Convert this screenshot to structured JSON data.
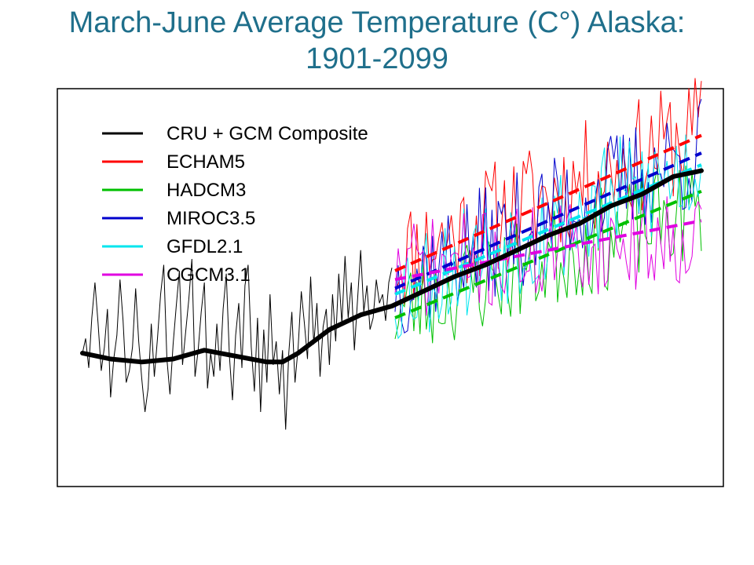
{
  "title": {
    "line1": "March-June Average Temperature (C°) Alaska:",
    "line2": "1901-2099"
  },
  "chart_data": {
    "type": "line",
    "title": "March-June Average Temperature (C°) Alaska: 1901-2099",
    "xlabel": "",
    "ylabel": "",
    "xlim": [
      1901,
      2099
    ],
    "ylim": [
      -6,
      6
    ],
    "grid": false,
    "legend_position": "top-left",
    "smoothed_composite": {
      "name": "CRU + GCM Composite",
      "color": "#000000",
      "x": [
        1901,
        1910,
        1920,
        1930,
        1940,
        1950,
        1960,
        1965,
        1970,
        1980,
        1990,
        2000,
        2010,
        2020,
        2030,
        2040,
        2050,
        2060,
        2070,
        2080,
        2090,
        2099
      ],
      "y": [
        -2.0,
        -2.2,
        -2.3,
        -2.2,
        -1.9,
        -2.1,
        -2.3,
        -2.3,
        -2.0,
        -1.2,
        -0.7,
        -0.4,
        0.1,
        0.6,
        1.0,
        1.5,
        2.0,
        2.4,
        3.0,
        3.4,
        4.0,
        4.2
      ]
    },
    "observed_annual": {
      "name": "CRU + GCM Composite",
      "color": "#000000",
      "x_start": 1901,
      "x_end": 2000,
      "y": [
        -2.0,
        -1.5,
        -2.5,
        -0.8,
        0.4,
        -1.0,
        -2.6,
        -1.8,
        -0.5,
        -3.5,
        -2.2,
        -1.4,
        0.5,
        -0.9,
        -3.0,
        -2.6,
        -1.8,
        0.2,
        -1.6,
        -2.9,
        -4.0,
        -3.2,
        -1.0,
        -2.8,
        -1.5,
        0.0,
        1.0,
        -2.2,
        -3.4,
        -1.7,
        -0.4,
        0.8,
        -2.4,
        -1.3,
        -0.2,
        1.2,
        -2.8,
        -1.9,
        -0.6,
        0.4,
        -3.2,
        -2.0,
        -2.8,
        -1.0,
        -2.6,
        -0.5,
        0.7,
        -2.1,
        -3.6,
        -1.4,
        -0.3,
        -2.5,
        0.3,
        1.0,
        -1.8,
        -3.3,
        -0.8,
        -4.0,
        -1.2,
        -3.0,
        0.0,
        -2.4,
        -1.6,
        -3.4,
        -1.9,
        -4.6,
        -2.0,
        -0.6,
        -3.0,
        -1.8,
        0.1,
        -1.0,
        -2.2,
        0.6,
        -1.7,
        -0.3,
        -2.8,
        -1.1,
        -0.5,
        -2.4,
        0.0,
        -1.6,
        0.7,
        -1.0,
        1.3,
        -0.8,
        0.4,
        -1.9,
        -0.2,
        1.5,
        -0.6,
        0.3,
        -1.2,
        -0.8,
        0.5,
        -0.3,
        0.0,
        -0.9,
        0.4,
        0.9
      ]
    },
    "series": [
      {
        "name": "ECHAM5",
        "color": "#ff0000",
        "lw": 1,
        "seed": 11,
        "trend": [
          1.2,
          5.6
        ],
        "spread": 2.0,
        "x_start": 2001,
        "x_end": 2099
      },
      {
        "name": "HADCM3",
        "color": "#00c000",
        "lw": 1,
        "seed": 23,
        "trend": [
          -0.6,
          3.0
        ],
        "spread": 1.8,
        "x_start": 2001,
        "x_end": 2099
      },
      {
        "name": "MIROC3.5",
        "color": "#0000cc",
        "lw": 1,
        "seed": 37,
        "trend": [
          0.4,
          4.9
        ],
        "spread": 2.0,
        "x_start": 2001,
        "x_end": 2099
      },
      {
        "name": "GFDL2.1",
        "color": "#00e5ee",
        "lw": 1,
        "seed": 53,
        "trend": [
          0.2,
          4.4
        ],
        "spread": 2.1,
        "x_start": 2001,
        "x_end": 2099
      },
      {
        "name": "CGCM3.1",
        "color": "#e000e0",
        "lw": 1,
        "seed": 71,
        "trend": [
          0.8,
          2.1
        ],
        "spread": 1.7,
        "x_start": 2001,
        "x_end": 2099
      }
    ],
    "trend_lines": [
      {
        "name": "ECHAM5",
        "color": "#ff0000",
        "x": [
          2001,
          2099
        ],
        "y": [
          0.8,
          5.4
        ]
      },
      {
        "name": "HADCM3",
        "color": "#00c000",
        "x": [
          2001,
          2099
        ],
        "y": [
          -0.8,
          3.5
        ]
      },
      {
        "name": "MIROC3.5",
        "color": "#0000cc",
        "x": [
          2001,
          2099
        ],
        "y": [
          0.2,
          4.8
        ]
      },
      {
        "name": "GFDL2.1",
        "color": "#00e5ee",
        "x": [
          2001,
          2099
        ],
        "y": [
          0.0,
          4.4
        ]
      },
      {
        "name": "CGCM3.1",
        "color": "#e000e0",
        "x": [
          2001,
          2099
        ],
        "y": [
          0.5,
          2.5
        ]
      }
    ],
    "legend": [
      {
        "label": "CRU + GCM Composite",
        "color": "#000000"
      },
      {
        "label": "ECHAM5",
        "color": "#ff0000"
      },
      {
        "label": "HADCM3",
        "color": "#00c000"
      },
      {
        "label": "MIROC3.5",
        "color": "#0000cc"
      },
      {
        "label": "GFDL2.1",
        "color": "#00e5ee"
      },
      {
        "label": "CGCM3.1",
        "color": "#e000e0"
      }
    ]
  }
}
